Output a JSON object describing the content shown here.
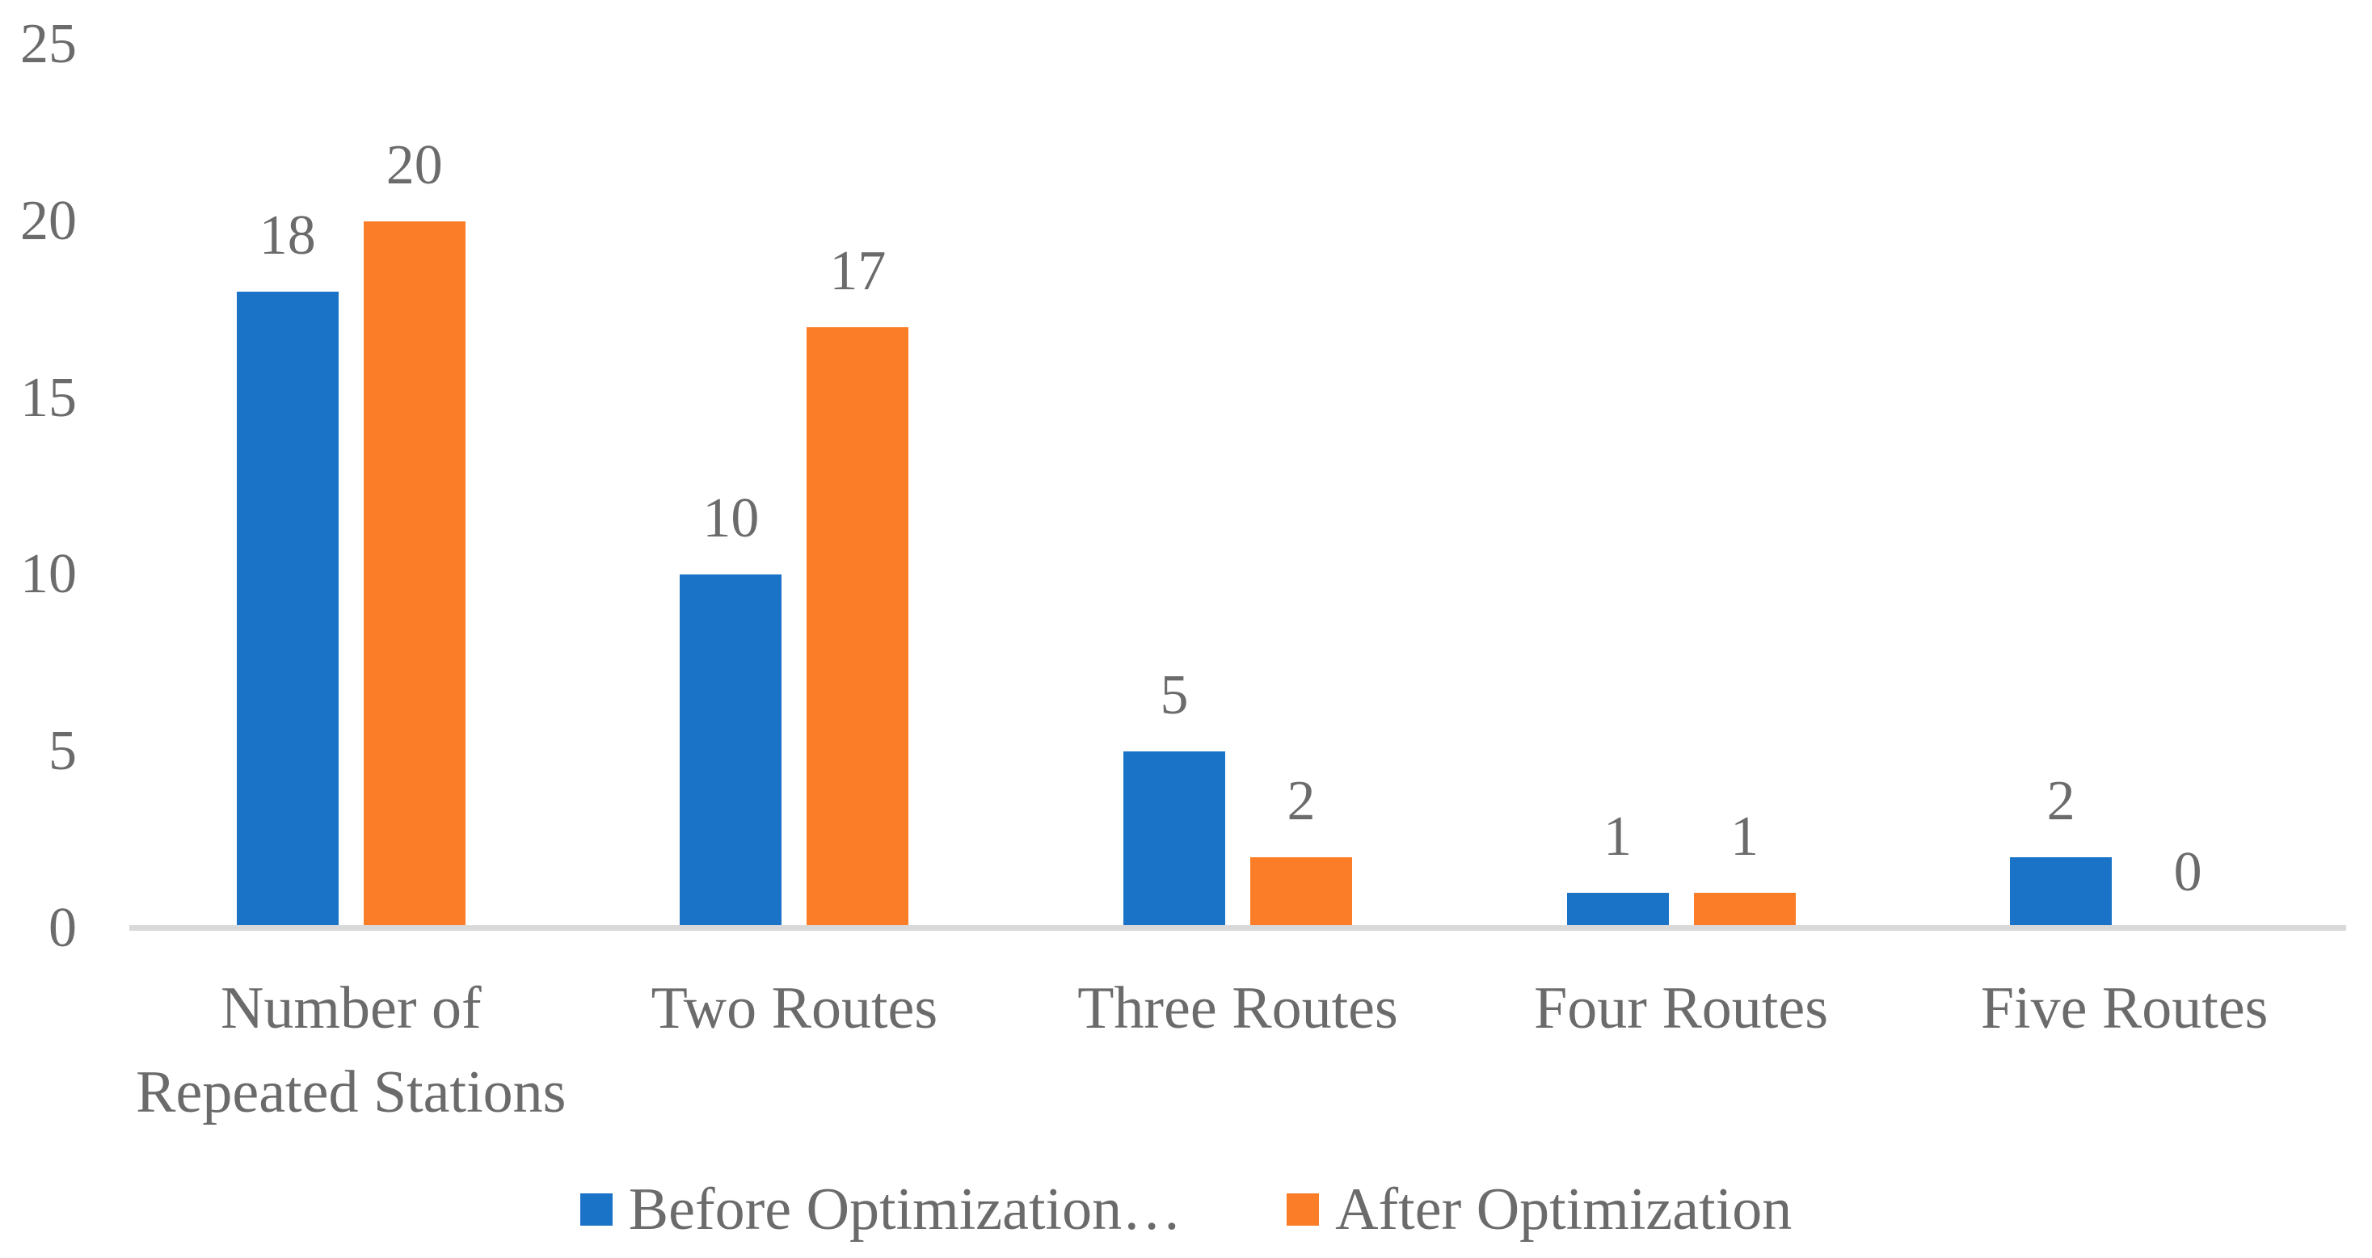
{
  "chart_data": {
    "type": "bar",
    "title": "",
    "categories": [
      "Number of\nRepeated Stations",
      "Two Routes",
      "Three Routes",
      "Four Routes",
      "Five Routes"
    ],
    "series": [
      {
        "name": "Before Optimization…",
        "color": "#1B73C8",
        "values": [
          18,
          10,
          5,
          1,
          2
        ]
      },
      {
        "name": "After Optimization",
        "color": "#FC7D27",
        "values": [
          20,
          17,
          2,
          1,
          0
        ]
      }
    ],
    "y_ticks": [
      0,
      5,
      10,
      15,
      20,
      25
    ],
    "ylim": [
      0,
      25
    ],
    "grid": false,
    "data_labels": true,
    "legend_position": "bottom",
    "label_color": "#6B6B6B",
    "axis_line_color": "#D9D9D9"
  }
}
